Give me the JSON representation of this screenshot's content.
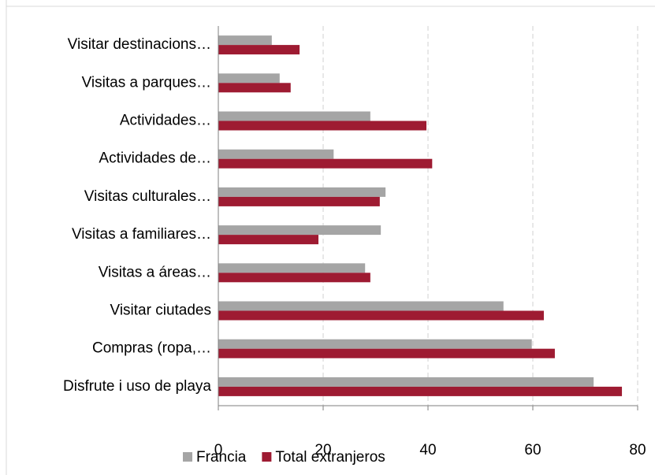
{
  "chart_data": {
    "type": "bar",
    "orientation": "horizontal",
    "categories": [
      "Visitar destinacions…",
      "Visitas a parques…",
      "Actividades…",
      "Actividades de…",
      "Visitas culturales…",
      "Visitas a familiares…",
      "Visitas a áreas…",
      "Visitar ciutades",
      "Compras (ropa,…",
      "Disfrute i uso de playa"
    ],
    "series": [
      {
        "name": "Francia",
        "color": "#a5a5a5",
        "values": [
          10.2,
          11.7,
          29,
          22,
          31.9,
          31,
          28,
          54.4,
          59.8,
          71.6
        ]
      },
      {
        "name": "Total extranjeros",
        "color": "#9e1b32",
        "values": [
          15.5,
          13.8,
          39.7,
          40.8,
          30.8,
          19.1,
          29,
          62.1,
          64.2,
          77
        ]
      }
    ],
    "xlim": [
      0,
      80
    ],
    "xticks": [
      0,
      20,
      40,
      60,
      80
    ],
    "grid": true,
    "legend": "bottom"
  }
}
